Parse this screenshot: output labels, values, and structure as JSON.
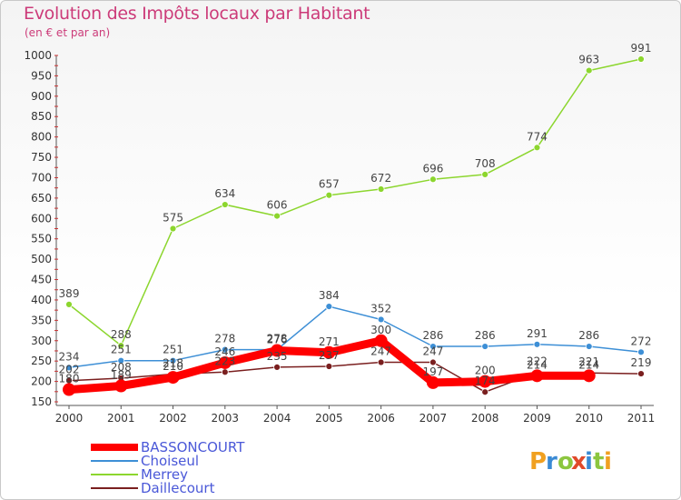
{
  "chart_data": {
    "type": "line",
    "title": "Evolution des Impôts locaux par Habitant",
    "subtitle": "(en € et par an)",
    "x": [
      "2000",
      "2001",
      "2002",
      "2003",
      "2004",
      "2005",
      "2006",
      "2007",
      "2008",
      "2009",
      "2010",
      "2011"
    ],
    "ylim": [
      150,
      1000
    ],
    "yticks": [
      150,
      200,
      250,
      300,
      350,
      400,
      450,
      500,
      550,
      600,
      650,
      700,
      750,
      800,
      850,
      900,
      950,
      1000
    ],
    "grid": false,
    "series": [
      {
        "name": "BASSONCOURT",
        "color": "#ff0000",
        "values": [
          180,
          189,
          210,
          246,
          276,
          271,
          300,
          197,
          200,
          214,
          214,
          null
        ],
        "labels": [
          "180",
          "189",
          "210",
          "246",
          "276",
          "271",
          "300",
          "197",
          "200",
          "214",
          "214",
          ""
        ],
        "emphasis": true
      },
      {
        "name": "Choiseul",
        "color": "#3d8fd6",
        "values": [
          234,
          251,
          251,
          278,
          278,
          384,
          352,
          286,
          286,
          291,
          286,
          272
        ],
        "labels": [
          "234",
          "251",
          "251",
          "278",
          "278",
          "384",
          "352",
          "286",
          "286",
          "291",
          "286",
          "272"
        ]
      },
      {
        "name": "Merrey",
        "color": "#8cd62e",
        "values": [
          389,
          288,
          575,
          634,
          606,
          657,
          672,
          696,
          708,
          774,
          963,
          991
        ],
        "labels": [
          "389",
          "288",
          "575",
          "634",
          "606",
          "657",
          "672",
          "696",
          "708",
          "774",
          "963",
          "991"
        ]
      },
      {
        "name": "Daillecourt",
        "color": "#7a1f1f",
        "values": [
          202,
          208,
          218,
          223,
          235,
          237,
          247,
          247,
          174,
          222,
          221,
          219
        ],
        "labels": [
          "202",
          "208",
          "218",
          "223",
          "235",
          "237",
          "247",
          "247",
          "174",
          "222",
          "221",
          "219"
        ]
      }
    ],
    "legend_position": "bottom-left"
  },
  "branding": {
    "logo_text": "Proxiti"
  }
}
